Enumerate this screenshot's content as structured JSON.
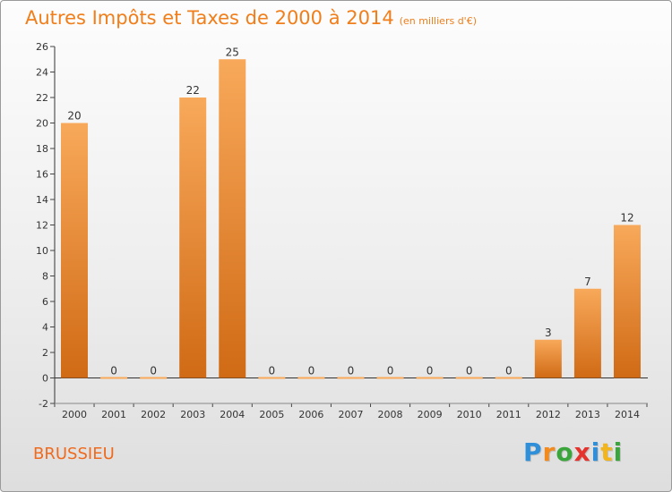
{
  "header": {
    "title": "Autres Impôts et Taxes de 2000 à 2014",
    "unit": "(en milliers d'€)"
  },
  "footer": {
    "town": "BRUSSIEU",
    "logo_letters": [
      "P",
      "r",
      "o",
      "x",
      "i",
      "t",
      "i"
    ],
    "logo_colors": [
      "#2f8fd8",
      "#f28a1e",
      "#3aa53a",
      "#e5322c",
      "#2f8fd8",
      "#f2b51e",
      "#3aa53a"
    ]
  },
  "colors": {
    "bar_light": "#f8a95a",
    "bar_dark": "#d06a15",
    "axis": "#333333",
    "grid_tick": "#444444"
  },
  "chart_data": {
    "type": "bar",
    "categories": [
      "2000",
      "2001",
      "2002",
      "2003",
      "2004",
      "2005",
      "2006",
      "2007",
      "2008",
      "2009",
      "2010",
      "2011",
      "2012",
      "2013",
      "2014"
    ],
    "values": [
      20,
      0,
      0,
      22,
      25,
      0,
      0,
      0,
      0,
      0,
      0,
      0,
      3,
      7,
      12
    ],
    "value_labels": [
      "20",
      "0",
      "0",
      "22",
      "25",
      "0",
      "0",
      "0",
      "0",
      "0",
      "0",
      "0",
      "3",
      "7",
      "12"
    ],
    "ylim": [
      -2,
      26
    ],
    "yticks": [
      -2,
      0,
      2,
      4,
      6,
      8,
      10,
      12,
      14,
      16,
      18,
      20,
      22,
      24,
      26
    ],
    "ytick_labels": [
      "-2",
      "0",
      "2",
      "4",
      "6",
      "8",
      "10",
      "12",
      "14",
      "16",
      "18",
      "20",
      "22",
      "24",
      "26"
    ],
    "grid": false,
    "legend": "none"
  }
}
